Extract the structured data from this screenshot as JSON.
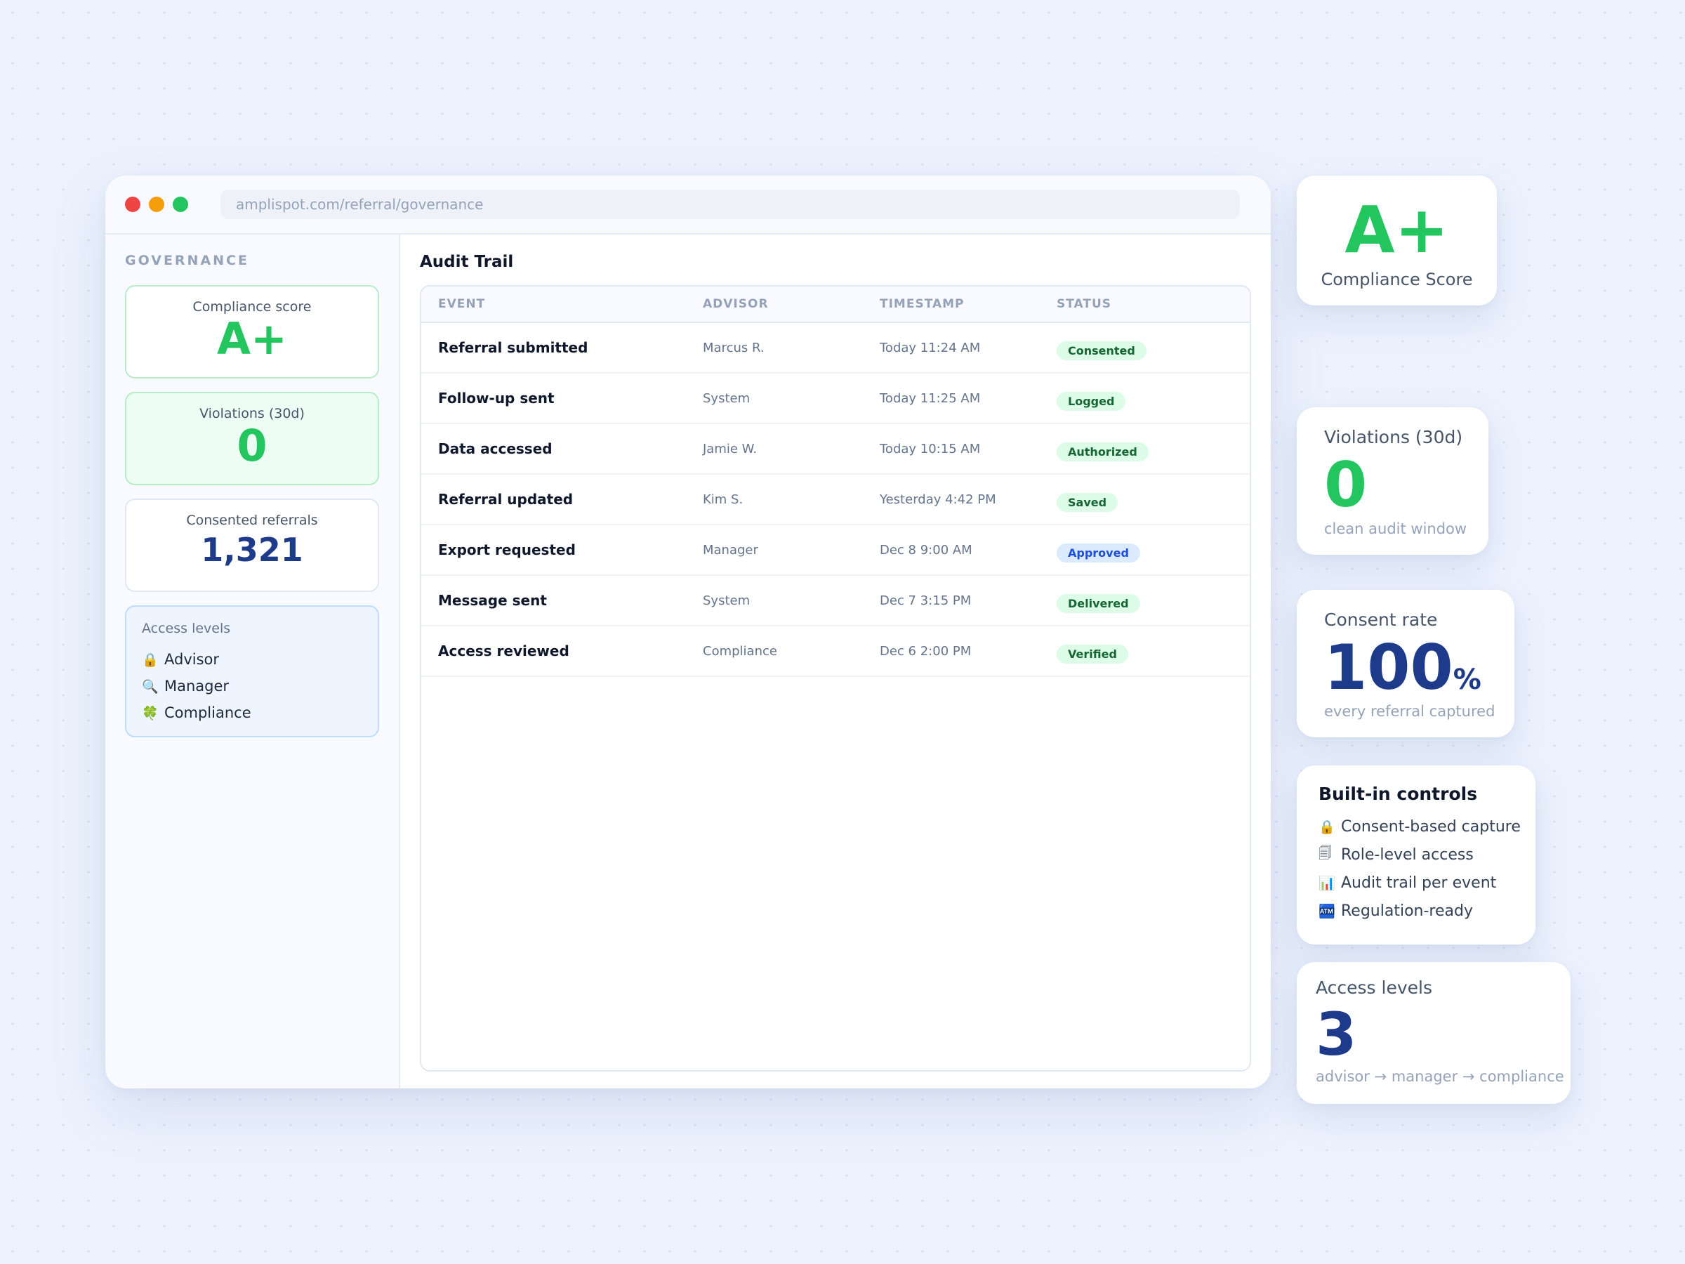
{
  "window": {
    "url": "amplispot.com/referral/governance",
    "traffic_lights": [
      "#ef4444",
      "#f59e0b",
      "#22c55e"
    ]
  },
  "sidebar": {
    "heading": "GOVERNANCE",
    "compliance": {
      "label": "Compliance score",
      "value": "A+"
    },
    "violations": {
      "label": "Violations (30d)",
      "value": "0"
    },
    "consented": {
      "label": "Consented referrals",
      "value": "1,321"
    },
    "access": {
      "title": "Access levels",
      "items": [
        {
          "icon": "lock-icon",
          "glyph": "🔒",
          "label": "Advisor"
        },
        {
          "icon": "magnifier-icon",
          "glyph": "🔍",
          "label": "Manager"
        },
        {
          "icon": "clover-icon",
          "glyph": "🍀",
          "label": "Compliance"
        }
      ]
    }
  },
  "main": {
    "title": "Audit Trail",
    "columns": [
      "EVENT",
      "ADVISOR",
      "TIMESTAMP",
      "STATUS"
    ],
    "rows": [
      {
        "event": "Referral submitted",
        "advisor": "Marcus R.",
        "timestamp": "Today 11:24 AM",
        "status": "Consented"
      },
      {
        "event": "Follow-up sent",
        "advisor": "System",
        "timestamp": "Today 11:25 AM",
        "status": "Logged"
      },
      {
        "event": "Data accessed",
        "advisor": "Jamie W.",
        "timestamp": "Today 10:15 AM",
        "status": "Authorized"
      },
      {
        "event": "Referral updated",
        "advisor": "Kim S.",
        "timestamp": "Yesterday 4:42 PM",
        "status": "Saved"
      },
      {
        "event": "Export requested",
        "advisor": "Manager",
        "timestamp": "Dec 8 9:00 AM",
        "status": "Approved"
      },
      {
        "event": "Message sent",
        "advisor": "System",
        "timestamp": "Dec 7 3:15 PM",
        "status": "Delivered"
      },
      {
        "event": "Access reviewed",
        "advisor": "Compliance",
        "timestamp": "Dec 6 2:00 PM",
        "status": "Verified"
      }
    ]
  },
  "cards": {
    "score": {
      "value": "A+",
      "label": "Compliance Score"
    },
    "violations": {
      "title": "Violations (30d)",
      "value": "0",
      "sub": "clean audit window"
    },
    "consent": {
      "title": "Consent rate",
      "value": "100",
      "unit": "%",
      "sub": "every referral captured"
    },
    "controls": {
      "title": "Built-in controls",
      "items": [
        {
          "icon": "lock-icon",
          "glyph": "🔒",
          "label": "Consent-based capture"
        },
        {
          "icon": "cards-icon",
          "glyph": "🗐",
          "label": "Role-level access"
        },
        {
          "icon": "bar-chart-icon",
          "glyph": "📊",
          "label": "Audit trail per event"
        },
        {
          "icon": "atm-icon",
          "glyph": "🏧",
          "label": "Regulation-ready"
        }
      ]
    },
    "access": {
      "title": "Access levels",
      "value": "3",
      "sub": "advisor → manager → compliance"
    }
  },
  "colors": {
    "green": "#22c55e",
    "navy": "#1e3a8a",
    "badge_green_bg": "#dcfce7",
    "badge_blue_bg": "#dbeafe",
    "background": "#ecf2fd"
  }
}
